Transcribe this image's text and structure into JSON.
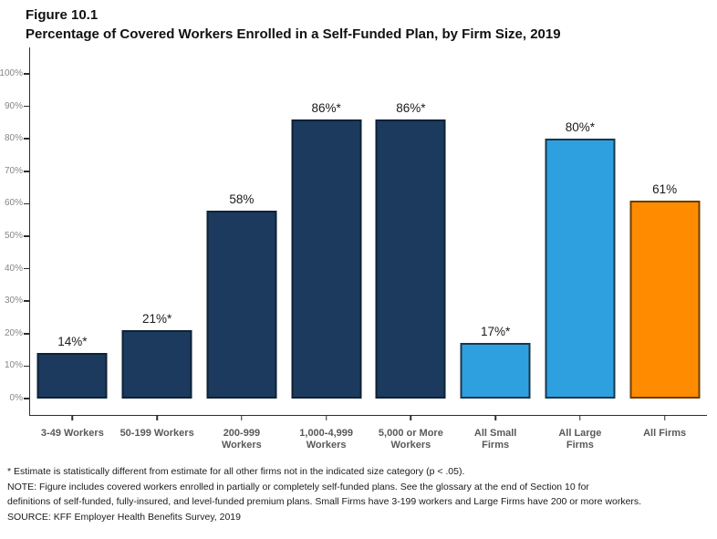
{
  "figure_label": "Figure 10.1",
  "title": "Percentage of Covered Workers Enrolled in a Self-Funded Plan, by Firm Size, 2019",
  "chart_data": {
    "type": "bar",
    "title": "Percentage of Covered Workers Enrolled in a Self-Funded Plan, by Firm Size, 2019",
    "categories": [
      "3-49 Workers",
      "50-199 Workers",
      "200-999 Workers",
      "1,000-4,999 Workers",
      "5,000 or More Workers",
      "All Small Firms",
      "All Large Firms",
      "All Firms"
    ],
    "category_lines": [
      [
        "3-49 Workers"
      ],
      [
        "50-199 Workers"
      ],
      [
        "200-999",
        "Workers"
      ],
      [
        "1,000-4,999",
        "Workers"
      ],
      [
        "5,000 or More",
        "Workers"
      ],
      [
        "All Small",
        "Firms"
      ],
      [
        "All Large",
        "Firms"
      ],
      [
        "All Firms"
      ]
    ],
    "values": [
      14,
      21,
      58,
      86,
      86,
      17,
      80,
      61
    ],
    "value_labels": [
      "14%*",
      "21%*",
      "58%",
      "86%*",
      "86%*",
      "17%*",
      "80%*",
      "61%"
    ],
    "bar_color_keys": [
      "navy",
      "navy",
      "navy",
      "navy",
      "navy",
      "lightblue",
      "lightblue",
      "orange"
    ],
    "palette": {
      "navy": {
        "fill": "#1B3A5E",
        "border": "#0E2237"
      },
      "lightblue": {
        "fill": "#2FA0DF",
        "border": "#17374F"
      },
      "orange": {
        "fill": "#FF8C00",
        "border": "#6E3C00"
      }
    },
    "xlabel": "",
    "ylabel": "",
    "ylim": [
      0,
      100
    ],
    "ytick_step": 10,
    "ytick_labels": [
      "0%",
      "10%",
      "20%",
      "30%",
      "40%",
      "50%",
      "60%",
      "70%",
      "80%",
      "90%",
      "100%"
    ],
    "grid": false,
    "legend": "none"
  },
  "footnotes": [
    "* Estimate is statistically different from estimate for all other firms not in the indicated size category (p < .05).",
    "NOTE: Figure includes covered workers enrolled in partially or completely self-funded plans. See the glossary at the end of Section 10 for",
    "definitions of self-funded, fully-insured, and level-funded premium plans. Small Firms have 3-199 workers and Large Firms have 200 or more workers.",
    "SOURCE: KFF Employer Health Benefits Survey, 2019"
  ]
}
